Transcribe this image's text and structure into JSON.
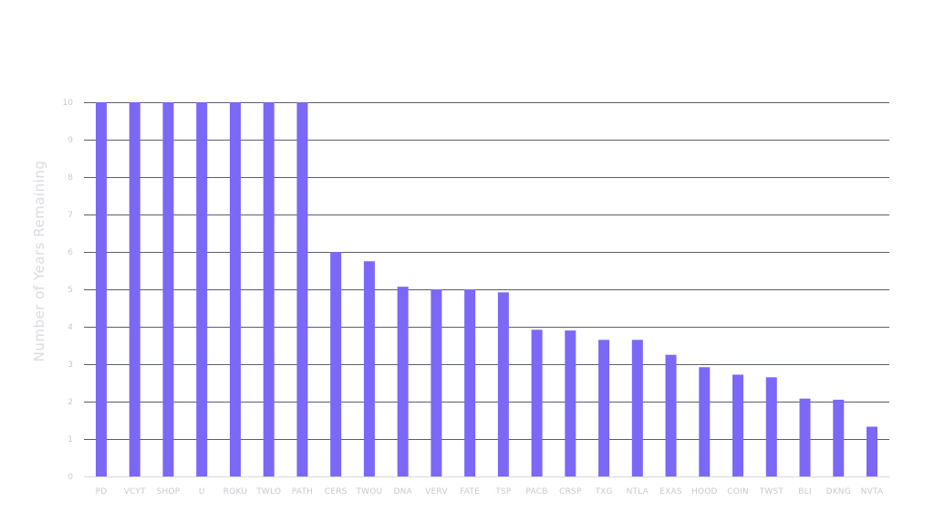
{
  "chart_data": {
    "type": "bar",
    "title": "",
    "xlabel": "",
    "ylabel": "Number of Years Remaining",
    "ylim": [
      0,
      10
    ],
    "yticks": [
      0,
      1,
      2,
      3,
      4,
      5,
      6,
      7,
      8,
      9,
      10
    ],
    "grid": true,
    "legend": "none",
    "colors": {
      "bar": "#7b68f6",
      "grid": "#5a5e6b",
      "axis_text": "#c8cad1"
    },
    "categories": [
      "PD",
      "VCYT",
      "SHOP",
      "U",
      "ROKU",
      "TWLO",
      "PATH",
      "CERS",
      "TWOU",
      "DNA",
      "VERV",
      "FATE",
      "TSP",
      "PACB",
      "CRSP",
      "TXG",
      "NTLA",
      "EXAS",
      "HOOD",
      "COIN",
      "TWST",
      "BLI",
      "DKNG",
      "NVTA"
    ],
    "values": [
      10,
      10,
      10,
      10,
      10,
      10,
      10,
      6.0,
      5.75,
      5.07,
      5.0,
      5.0,
      4.92,
      3.92,
      3.9,
      3.65,
      3.65,
      3.25,
      2.92,
      2.72,
      2.65,
      2.08,
      2.05,
      1.33
    ]
  }
}
